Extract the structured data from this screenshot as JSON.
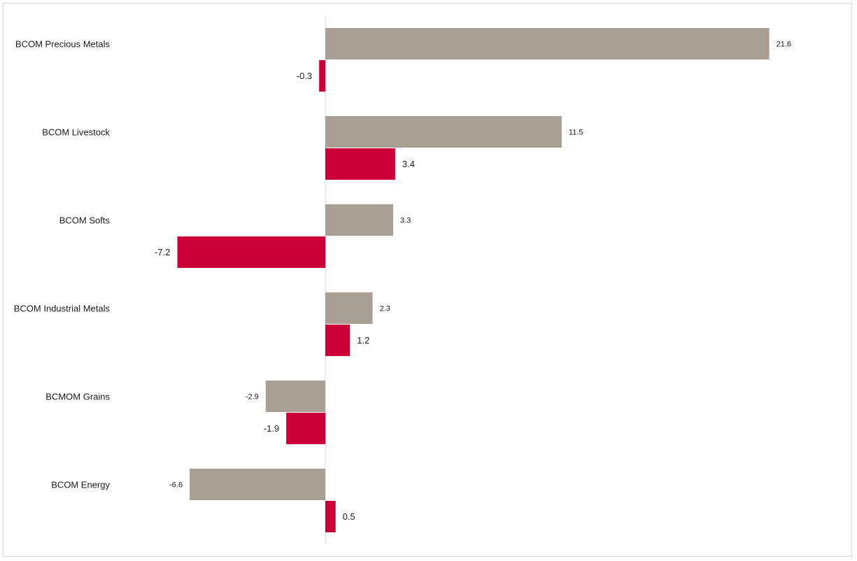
{
  "chart_data": {
    "type": "bar",
    "orientation": "horizontal",
    "categories": [
      "BCOM Precious Metals",
      "BCOM Livestock",
      "BCOM Softs",
      "BCOM Industrial Metals",
      "BCMOM Grains",
      "BCOM Energy"
    ],
    "series": [
      {
        "color": "#a89e93",
        "values": [
          21.6,
          11.5,
          3.3,
          2.3,
          -2.9,
          -6.6
        ]
      },
      {
        "color": "#cc0038",
        "values": [
          -0.3,
          3.4,
          -7.2,
          1.2,
          -1.9,
          0.5
        ]
      }
    ],
    "xlim": [
      -15.8,
      25.0
    ],
    "grid": false,
    "legend": "none",
    "axis_line_color": "#d9d9d9"
  }
}
